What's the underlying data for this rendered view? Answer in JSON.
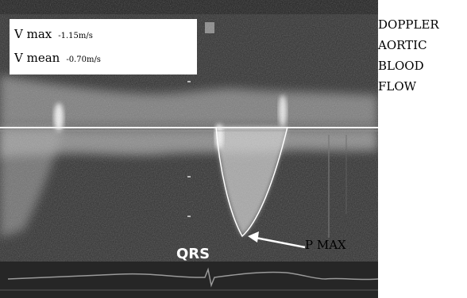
{
  "measurements": {
    "vmax": {
      "label": "V max",
      "value": "-1.15m/s"
    },
    "vmean": {
      "label": "V mean",
      "value": "-0.70m/s"
    }
  },
  "caption": {
    "lines": [
      "DOPPLER",
      "AORTIC",
      "BLOOD",
      "FLOW"
    ]
  },
  "annotations": {
    "qrs": "QRS",
    "pmax": "P MAX"
  },
  "colors": {
    "background": "#2f2f2f",
    "signal": "#e6e6e6",
    "trace": "#ffffff",
    "ecg": "#9a9a9a"
  },
  "icons": {
    "arrow": "arrow-left-icon"
  }
}
